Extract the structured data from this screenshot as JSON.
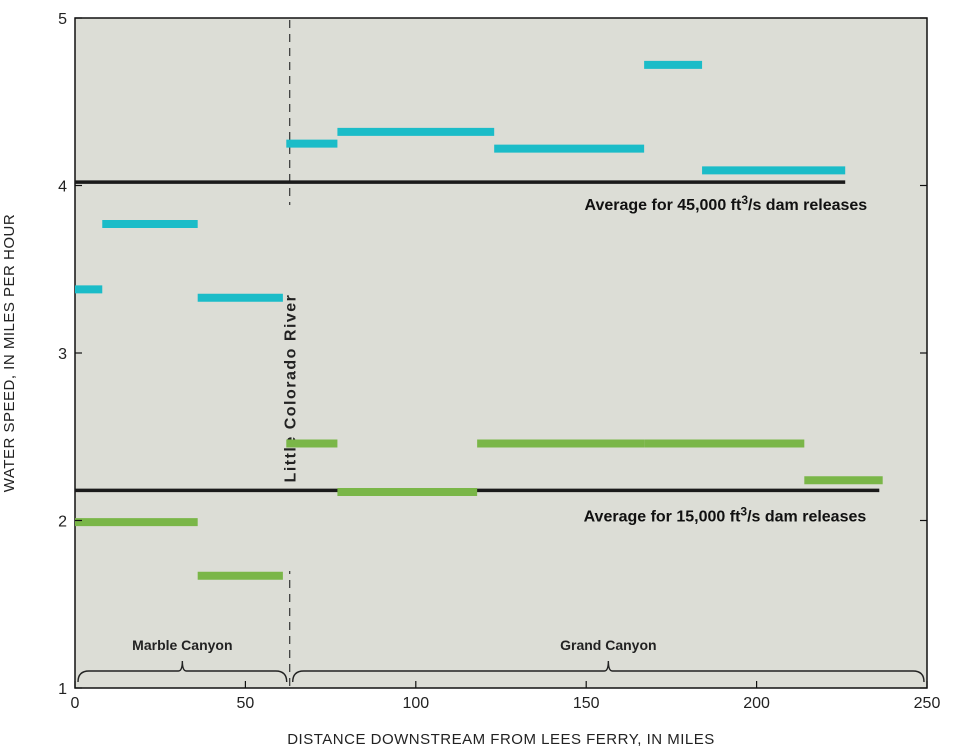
{
  "chart_data": {
    "type": "line",
    "xlabel": "DISTANCE DOWNSTREAM FROM LEES FERRY, IN MILES",
    "ylabel": "WATER SPEED, IN MILES PER HOUR",
    "xlim": [
      0,
      250
    ],
    "ylim": [
      1,
      5
    ],
    "x_ticks": [
      "0",
      "50",
      "100",
      "150",
      "200",
      "250"
    ],
    "y_ticks": [
      "1",
      "2",
      "3",
      "4",
      "5"
    ],
    "grid": false,
    "colors": {
      "high": "#1bbcc8",
      "low": "#7ab648",
      "average": "#1a1a1a",
      "plot_bg": "#dcddd6"
    },
    "series": [
      {
        "name": "45,000 ft3/s dam releases",
        "color": "#1bbcc8",
        "segments": [
          {
            "x0": 0,
            "x1": 8,
            "y": 3.38
          },
          {
            "x0": 8,
            "x1": 36,
            "y": 3.77
          },
          {
            "x0": 36,
            "x1": 61,
            "y": 3.33
          },
          {
            "x0": 62,
            "x1": 77,
            "y": 4.25
          },
          {
            "x0": 77,
            "x1": 123,
            "y": 4.32
          },
          {
            "x0": 123,
            "x1": 167,
            "y": 4.22
          },
          {
            "x0": 167,
            "x1": 184,
            "y": 4.72
          },
          {
            "x0": 184,
            "x1": 226,
            "y": 4.09
          }
        ],
        "average": {
          "x0": 0,
          "x1": 226,
          "y": 4.02
        }
      },
      {
        "name": "15,000 ft3/s dam releases",
        "color": "#7ab648",
        "segments": [
          {
            "x0": 0,
            "x1": 36,
            "y": 1.99
          },
          {
            "x0": 36,
            "x1": 61,
            "y": 1.67
          },
          {
            "x0": 62,
            "x1": 77,
            "y": 2.46
          },
          {
            "x0": 77,
            "x1": 118,
            "y": 2.17
          },
          {
            "x0": 118,
            "x1": 167,
            "y": 2.46
          },
          {
            "x0": 167,
            "x1": 214,
            "y": 2.46
          },
          {
            "x0": 214,
            "x1": 237,
            "y": 2.24
          }
        ],
        "average": {
          "x0": 0,
          "x1": 236,
          "y": 2.18
        }
      }
    ],
    "annotations": {
      "avg_high_label": {
        "prefix": "Average for 45,000 ft",
        "sup": "3",
        "suffix": "/s dam releases"
      },
      "avg_low_label": {
        "prefix": "Average for 15,000 ft",
        "sup": "3",
        "suffix": "/s dam releases"
      },
      "tributary": {
        "label": "Little Colorado River",
        "x": 63
      },
      "regions": [
        {
          "label": "Marble Canyon",
          "x0": 0,
          "x1": 63
        },
        {
          "label": "Grand Canyon",
          "x0": 63,
          "x1": 250
        }
      ]
    }
  }
}
